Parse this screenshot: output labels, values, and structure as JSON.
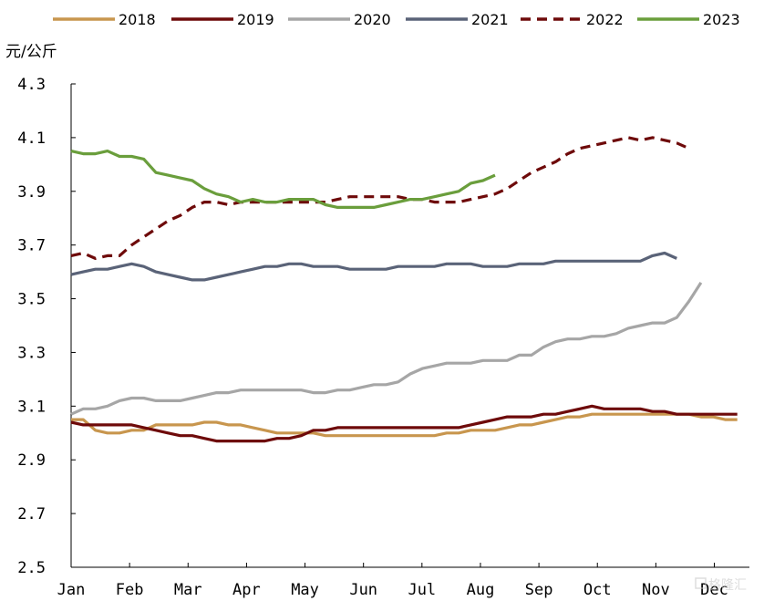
{
  "chart_data": {
    "type": "line",
    "unit": "元/公斤",
    "ylim": [
      2.5,
      4.3
    ],
    "yticks": [
      "2.5",
      "2.7",
      "2.9",
      "3.1",
      "3.3",
      "3.5",
      "3.7",
      "3.9",
      "4.1",
      "4.3"
    ],
    "xlabels": [
      "Jan",
      "Feb",
      "Mar",
      "Apr",
      "May",
      "Jun",
      "Jul",
      "Aug",
      "Sep",
      "Oct",
      "Nov",
      "Dec"
    ],
    "legend_position": "top",
    "grid": false,
    "series": [
      {
        "name": "2018",
        "color": "#c8964e",
        "dash": "solid",
        "values": [
          3.05,
          3.05,
          3.01,
          3.0,
          3.0,
          3.01,
          3.01,
          3.03,
          3.03,
          3.03,
          3.03,
          3.04,
          3.04,
          3.03,
          3.03,
          3.02,
          3.01,
          3.0,
          3.0,
          3.0,
          3.0,
          2.99,
          2.99,
          2.99,
          2.99,
          2.99,
          2.99,
          2.99,
          2.99,
          2.99,
          2.99,
          3.0,
          3.0,
          3.01,
          3.01,
          3.01,
          3.02,
          3.03,
          3.03,
          3.04,
          3.05,
          3.06,
          3.06,
          3.07,
          3.07,
          3.07,
          3.07,
          3.07,
          3.07,
          3.07,
          3.07,
          3.07,
          3.06,
          3.06,
          3.05,
          3.05
        ]
      },
      {
        "name": "2019",
        "color": "#6e0a0a",
        "dash": "solid",
        "values": [
          3.04,
          3.03,
          3.03,
          3.03,
          3.03,
          3.03,
          3.02,
          3.01,
          3.0,
          2.99,
          2.99,
          2.98,
          2.97,
          2.97,
          2.97,
          2.97,
          2.97,
          2.98,
          2.98,
          2.99,
          3.01,
          3.01,
          3.02,
          3.02,
          3.02,
          3.02,
          3.02,
          3.02,
          3.02,
          3.02,
          3.02,
          3.02,
          3.02,
          3.03,
          3.04,
          3.05,
          3.06,
          3.06,
          3.06,
          3.07,
          3.07,
          3.08,
          3.09,
          3.1,
          3.09,
          3.09,
          3.09,
          3.09,
          3.08,
          3.08,
          3.07,
          3.07,
          3.07,
          3.07,
          3.07,
          3.07
        ]
      },
      {
        "name": "2020",
        "color": "#a6a6a6",
        "dash": "solid",
        "values": [
          3.07,
          3.09,
          3.09,
          3.1,
          3.12,
          3.13,
          3.13,
          3.12,
          3.12,
          3.12,
          3.13,
          3.14,
          3.15,
          3.15,
          3.16,
          3.16,
          3.16,
          3.16,
          3.16,
          3.16,
          3.15,
          3.15,
          3.16,
          3.16,
          3.17,
          3.18,
          3.18,
          3.19,
          3.22,
          3.24,
          3.25,
          3.26,
          3.26,
          3.26,
          3.27,
          3.27,
          3.27,
          3.29,
          3.29,
          3.32,
          3.34,
          3.35,
          3.35,
          3.36,
          3.36,
          3.37,
          3.39,
          3.4,
          3.41,
          3.41,
          3.43,
          3.49,
          3.56
        ]
      },
      {
        "name": "2021",
        "color": "#5a6378",
        "dash": "solid",
        "values": [
          3.59,
          3.6,
          3.61,
          3.61,
          3.62,
          3.63,
          3.62,
          3.6,
          3.59,
          3.58,
          3.57,
          3.57,
          3.58,
          3.59,
          3.6,
          3.61,
          3.62,
          3.62,
          3.63,
          3.63,
          3.62,
          3.62,
          3.62,
          3.61,
          3.61,
          3.61,
          3.61,
          3.62,
          3.62,
          3.62,
          3.62,
          3.63,
          3.63,
          3.63,
          3.62,
          3.62,
          3.62,
          3.63,
          3.63,
          3.63,
          3.64,
          3.64,
          3.64,
          3.64,
          3.64,
          3.64,
          3.64,
          3.64,
          3.66,
          3.67,
          3.65
        ]
      },
      {
        "name": "2022",
        "color": "#6e0a0a",
        "dash": "dashed",
        "values": [
          3.66,
          3.67,
          3.65,
          3.66,
          3.66,
          3.7,
          3.73,
          3.76,
          3.79,
          3.81,
          3.84,
          3.86,
          3.86,
          3.85,
          3.86,
          3.86,
          3.86,
          3.86,
          3.86,
          3.86,
          3.86,
          3.86,
          3.87,
          3.88,
          3.88,
          3.88,
          3.88,
          3.88,
          3.87,
          3.87,
          3.86,
          3.86,
          3.86,
          3.87,
          3.88,
          3.89,
          3.91,
          3.94,
          3.97,
          3.99,
          4.01,
          4.04,
          4.06,
          4.07,
          4.08,
          4.09,
          4.1,
          4.09,
          4.1,
          4.09,
          4.08,
          4.06
        ]
      },
      {
        "name": "2023",
        "color": "#6a9e3c",
        "dash": "solid",
        "values": [
          4.05,
          4.04,
          4.04,
          4.05,
          4.03,
          4.03,
          4.02,
          3.97,
          3.96,
          3.95,
          3.94,
          3.91,
          3.89,
          3.88,
          3.86,
          3.87,
          3.86,
          3.86,
          3.87,
          3.87,
          3.87,
          3.85,
          3.84,
          3.84,
          3.84,
          3.84,
          3.85,
          3.86,
          3.87,
          3.87,
          3.88,
          3.89,
          3.9,
          3.93,
          3.94,
          3.96
        ]
      }
    ]
  }
}
